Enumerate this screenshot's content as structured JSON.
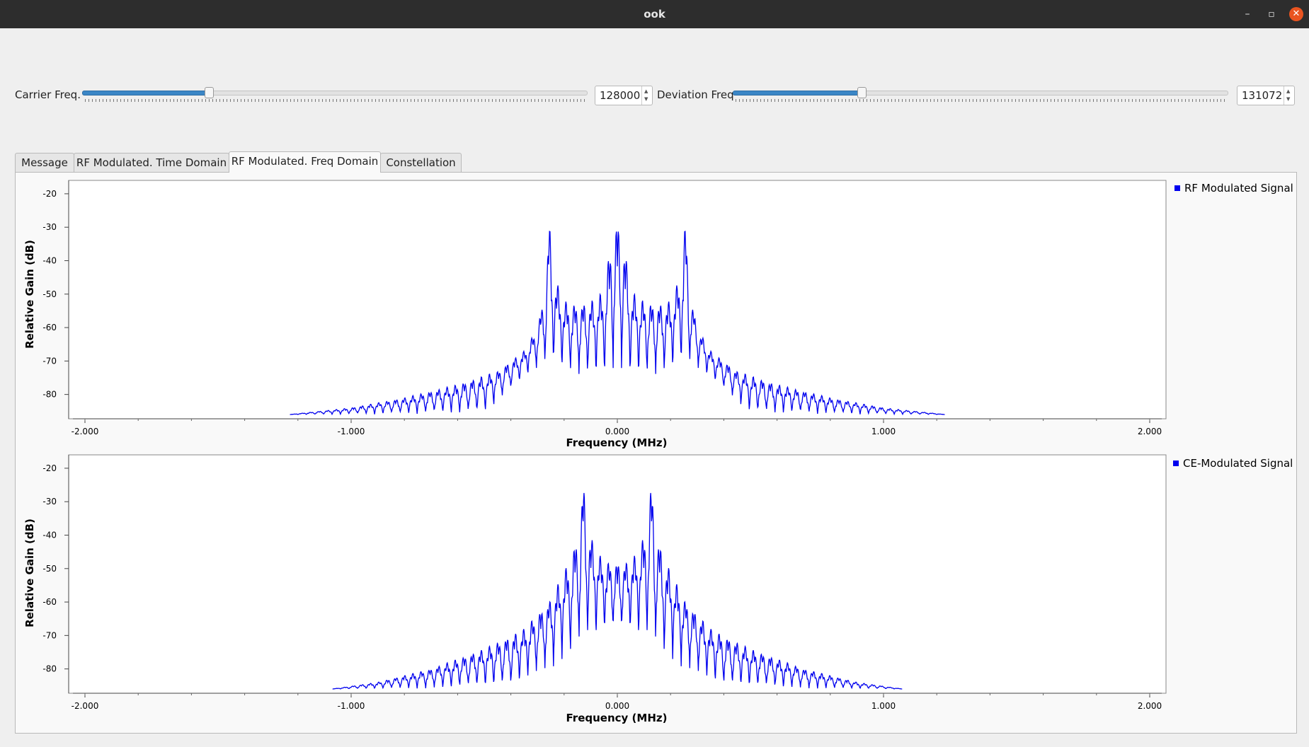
{
  "window": {
    "title": "ook",
    "minimize_glyph": "–",
    "maximize_glyph": "▫",
    "close_glyph": "✕"
  },
  "controls": {
    "carrier": {
      "label": "Carrier Freq.",
      "value": "128000",
      "slider_fraction": 0.25
    },
    "deviation": {
      "label": "Deviation Freq",
      "value": "131072",
      "slider_fraction": 0.26
    }
  },
  "tabs": [
    {
      "label": "Message",
      "active": false
    },
    {
      "label": "RF Modulated. Time Domain",
      "active": false
    },
    {
      "label": "RF Modulated. Freq Domain",
      "active": true
    },
    {
      "label": "Constellation",
      "active": false
    }
  ],
  "icons": {
    "spin_up": "triangle-up-icon",
    "spin_down": "triangle-down-icon",
    "legend_marker": "square-icon"
  },
  "colors": {
    "signal": "#0000ee",
    "accent": "#e95420",
    "slider_fill": "#3b86c6"
  },
  "chart_data": [
    {
      "type": "line",
      "xlabel": "Frequency (MHz)",
      "ylabel": "Relative Gain (dB)",
      "xlim": [
        -2.0,
        2.0
      ],
      "ylim": [
        -86,
        -16
      ],
      "x_ticks": [
        "-2.000",
        "-1.000",
        "0.000",
        "1.000",
        "2.000"
      ],
      "y_ticks": [
        "-20",
        "-30",
        "-40",
        "-50",
        "-60",
        "-70",
        "-80"
      ],
      "grid": false,
      "legend_position": "right",
      "series": [
        {
          "name": "RF Modulated Signal",
          "envelope": {
            "x": [
              -1.23,
              -1.0,
              -0.8,
              -0.6,
              -0.45,
              -0.35,
              -0.3,
              -0.27,
              -0.256,
              -0.24,
              -0.2,
              -0.15,
              -0.1,
              -0.05,
              -0.03,
              0.0,
              0.03,
              0.05,
              0.1,
              0.15,
              0.2,
              0.24,
              0.256,
              0.27,
              0.3,
              0.35,
              0.45,
              0.6,
              0.8,
              1.0,
              1.23
            ],
            "y": [
              -86,
              -84,
              -81,
              -77,
              -73,
              -67,
              -60,
              -48,
              -27,
              -44,
              -52,
              -53,
              -52,
              -49,
              -37,
              -27,
              -37,
              -49,
              -52,
              -53,
              -52,
              -44,
              -27,
              -48,
              -60,
              -67,
              -73,
              -77,
              -81,
              -84,
              -86
            ]
          },
          "null_depth": {
            "x": [
              -0.5,
              -0.3,
              -0.1,
              0.0,
              0.1,
              0.3,
              0.5
            ],
            "y": [
              -86,
              -72,
              -76,
              -76,
              -76,
              -72,
              -86
            ]
          }
        },
        {
          "name": "CE-Modulated Signal",
          "envelope": {
            "x": [
              -1.07,
              -0.9,
              -0.7,
              -0.5,
              -0.35,
              -0.25,
              -0.17,
              -0.14,
              -0.128,
              -0.115,
              -0.08,
              -0.04,
              0.0,
              0.04,
              0.08,
              0.115,
              0.128,
              0.14,
              0.17,
              0.25,
              0.35,
              0.5,
              0.7,
              0.9,
              1.07
            ],
            "y": [
              -86,
              -84,
              -80,
              -74,
              -68,
              -59,
              -46,
              -36,
              -22,
              -36,
              -45,
              -48,
              -48,
              -48,
              -45,
              -36,
              -22,
              -36,
              -46,
              -59,
              -68,
              -74,
              -80,
              -84,
              -86
            ]
          },
          "null_depth": {
            "x": [
              -0.4,
              -0.2,
              -0.05,
              0.0,
              0.05,
              0.2,
              0.4
            ],
            "y": [
              -86,
              -78,
              -70,
              -70,
              -70,
              -78,
              -86
            ]
          }
        }
      ]
    }
  ]
}
